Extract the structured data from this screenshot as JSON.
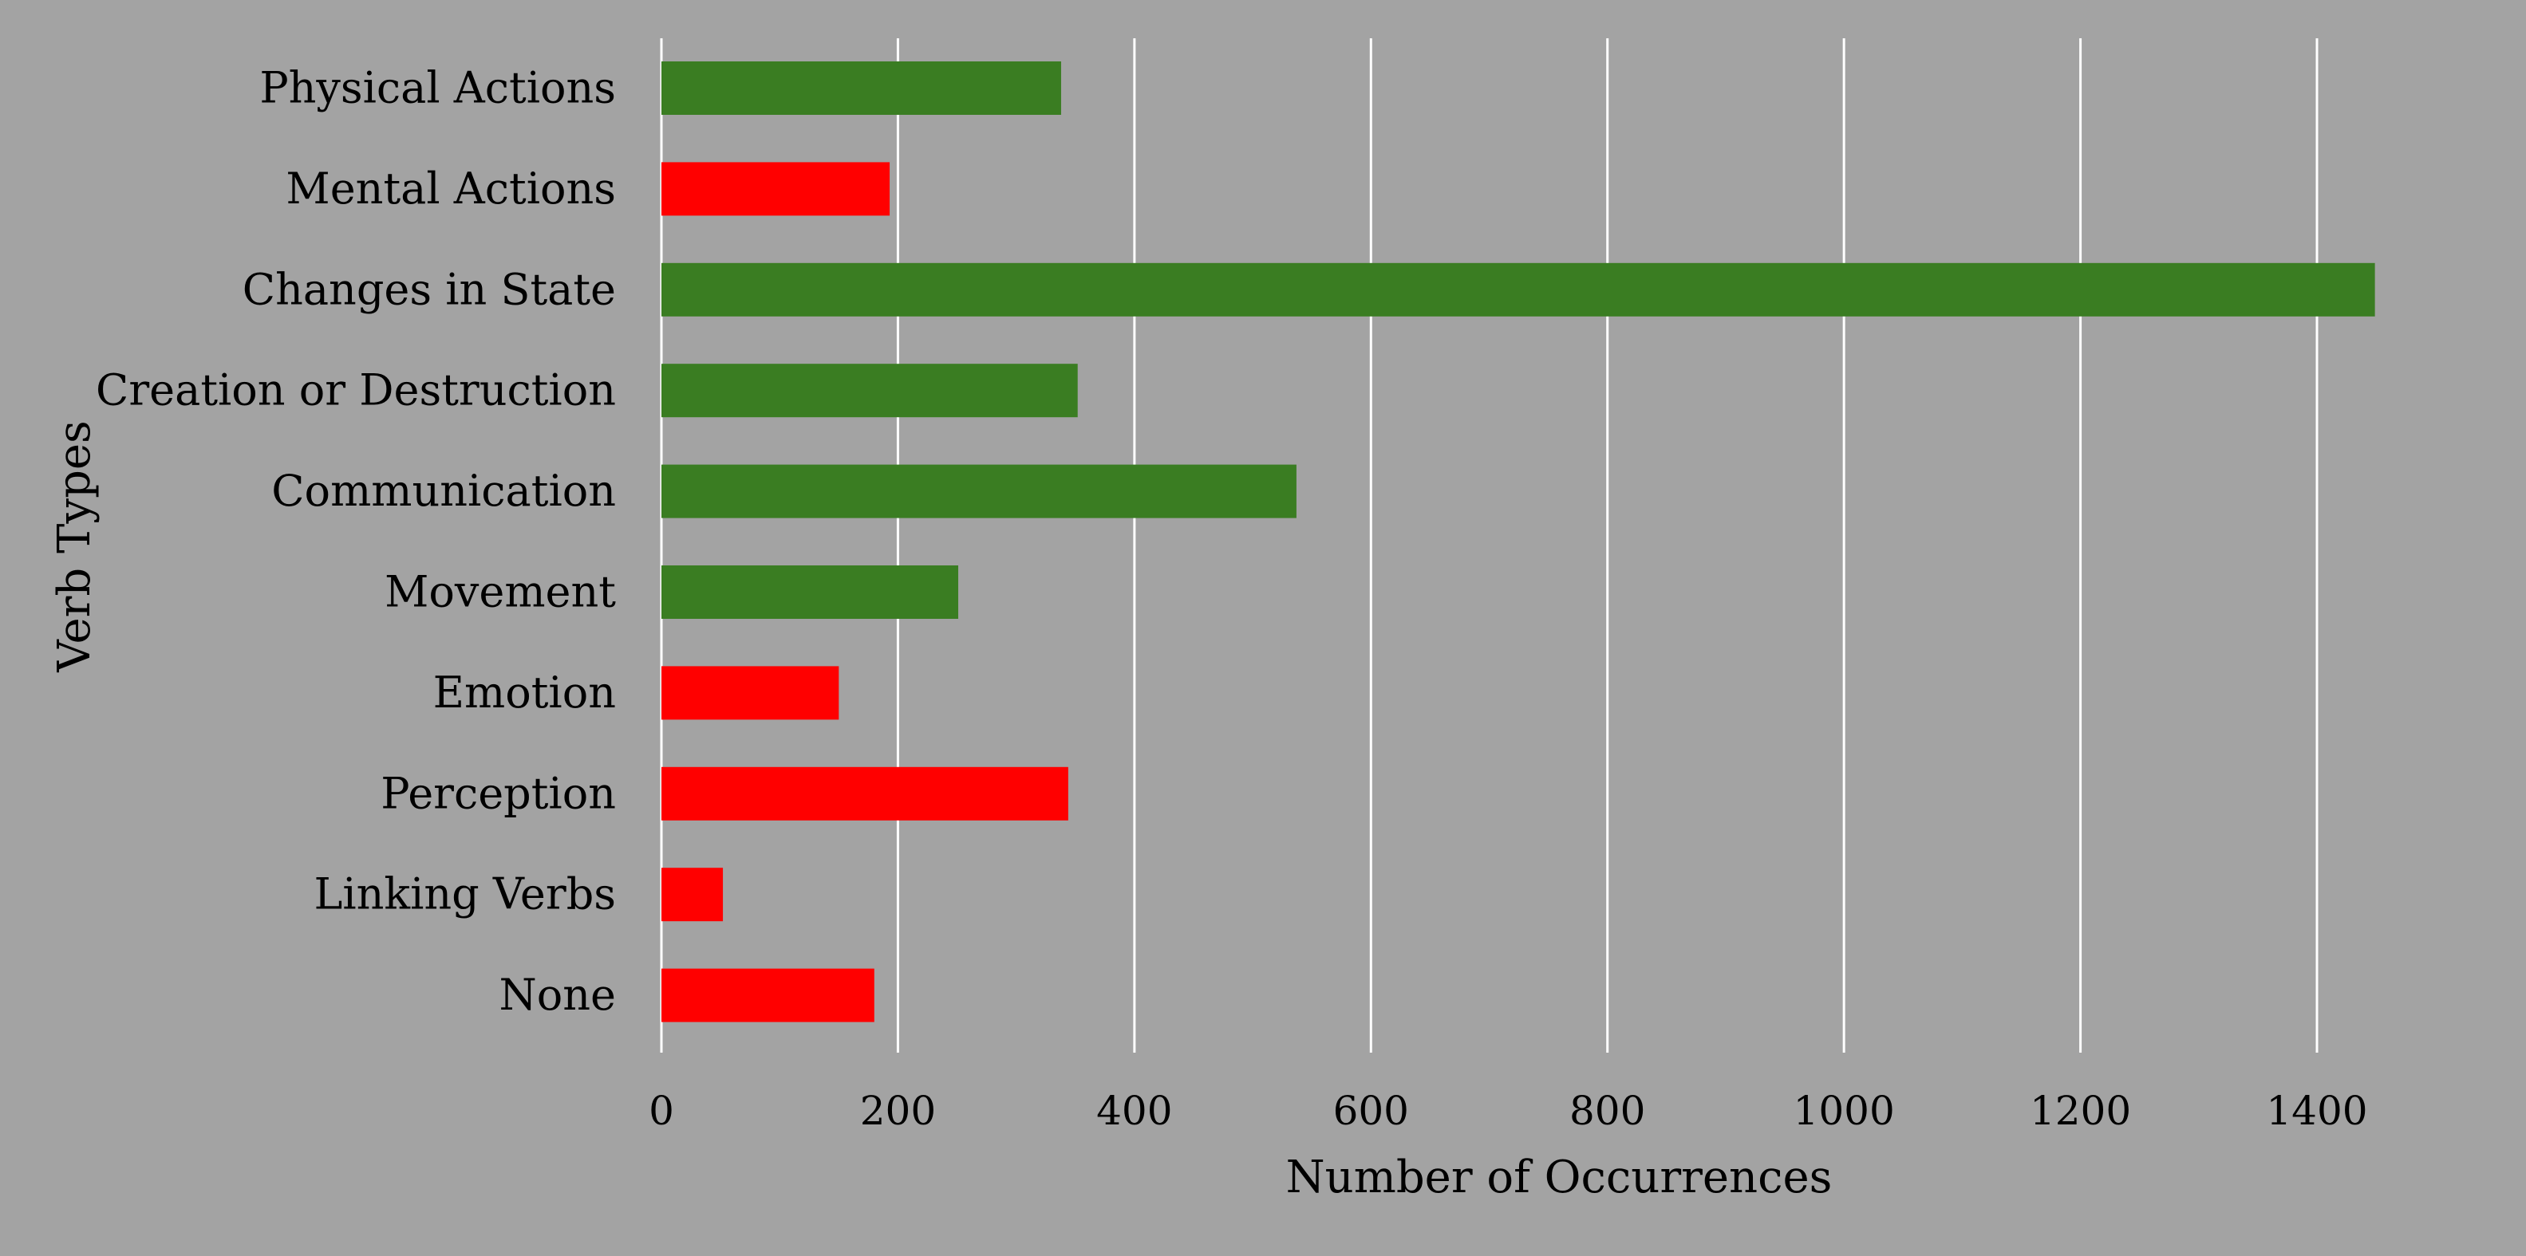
{
  "chart_data": {
    "type": "bar",
    "orientation": "horizontal",
    "title": "",
    "xlabel": "Number of Occurrences",
    "ylabel": "Verb Types",
    "xlim": [
      0,
      1500
    ],
    "xticks": [
      "0",
      "200",
      "400",
      "600",
      "800",
      "1000",
      "1200",
      "1400"
    ],
    "grid": "vertical",
    "legend": "none",
    "background_color": "#a3a3a3",
    "colors": {
      "green": "#3a7d22",
      "red": "#ff0000",
      "grid": "#ffffff"
    },
    "categories": [
      "Physical Actions",
      "Mental Actions",
      "Changes in State",
      "Creation or Destruction",
      "Communication",
      "Movement",
      "Emotion",
      "Perception",
      "Linking Verbs",
      "None"
    ],
    "values": [
      338,
      193,
      1449,
      352,
      537,
      251,
      150,
      344,
      52,
      180
    ],
    "bar_colors": [
      "green",
      "red",
      "green",
      "green",
      "green",
      "green",
      "red",
      "red",
      "red",
      "red"
    ]
  }
}
